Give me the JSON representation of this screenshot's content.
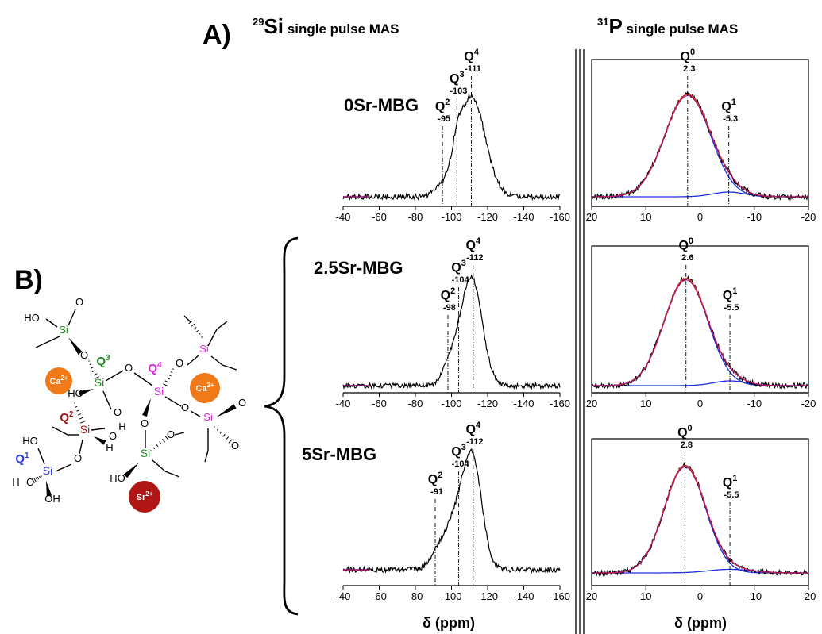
{
  "panels": {
    "a_label": "A)",
    "b_label": "B)",
    "si_header": {
      "isotope_mass": "29",
      "element": "Si",
      "text": " single pulse MAS"
    },
    "p_header": {
      "isotope_mass": "31",
      "element": "P",
      "text": " single pulse MAS"
    },
    "xlabel": "δ (ppm)"
  },
  "colors": {
    "experimental": "#000000",
    "fit_total": "#e0311f",
    "fit_envelope": "#b0127f",
    "components": "#1f2fe0"
  },
  "chart_data": [
    {
      "type": "line",
      "nucleus": "Si",
      "sample": "0Sr-MBG",
      "xlim": [
        -40,
        -160
      ],
      "xticks": [
        "-40",
        "-60",
        "-80",
        "-100",
        "-120",
        "-140",
        "-160"
      ],
      "peaks": [
        {
          "q": "Q",
          "sup": "2",
          "shift": -95,
          "shift_label": "-95",
          "amp": 0.05,
          "width": 5
        },
        {
          "q": "Q",
          "sup": "3",
          "shift": -103,
          "shift_label": "-103",
          "amp": 0.13,
          "width": 2.2
        },
        {
          "q": "Q",
          "sup": "4",
          "shift": -111,
          "shift_label": "-111",
          "amp": 0.85,
          "width": 7.5
        }
      ]
    },
    {
      "type": "line",
      "nucleus": "Si",
      "sample": "2.5Sr-MBG",
      "xlim": [
        -40,
        -160
      ],
      "xticks": [
        "-40",
        "-60",
        "-80",
        "-100",
        "-120",
        "-140",
        "-160"
      ],
      "peaks": [
        {
          "q": "Q",
          "sup": "2",
          "shift": -98,
          "shift_label": "-98",
          "amp": 0.04,
          "width": 3
        },
        {
          "q": "Q",
          "sup": "3",
          "shift": -104,
          "shift_label": "-104",
          "amp": 0.28,
          "width": 6
        },
        {
          "q": "Q",
          "sup": "4",
          "shift": -112,
          "shift_label": "-112",
          "amp": 0.78,
          "width": 5.5
        }
      ]
    },
    {
      "type": "line",
      "nucleus": "Si",
      "sample": "5Sr-MBG",
      "xlim": [
        -40,
        -160
      ],
      "xticks": [
        "-40",
        "-60",
        "-80",
        "-100",
        "-120",
        "-140",
        "-160"
      ],
      "peaks": [
        {
          "q": "Q",
          "sup": "2",
          "shift": -91,
          "shift_label": "-91",
          "amp": 0.05,
          "width": 3
        },
        {
          "q": "Q",
          "sup": "3",
          "shift": -104,
          "shift_label": "-104",
          "amp": 0.48,
          "width": 8
        },
        {
          "q": "Q",
          "sup": "4",
          "shift": -112,
          "shift_label": "-112",
          "amp": 0.68,
          "width": 5
        }
      ]
    },
    {
      "type": "line",
      "nucleus": "P",
      "sample": "0Sr-MBG",
      "xlim": [
        20,
        -20
      ],
      "xticks": [
        "20",
        "10",
        "0",
        "-10",
        "-20"
      ],
      "peaks": [
        {
          "q": "Q",
          "sup": "0",
          "shift": 2.3,
          "shift_label": "2.3",
          "amp": 0.86,
          "width": 4.2
        },
        {
          "q": "Q",
          "sup": "1",
          "shift": -5.3,
          "shift_label": "-5.3",
          "amp": 0.04,
          "width": 3
        }
      ]
    },
    {
      "type": "line",
      "nucleus": "P",
      "sample": "2.5Sr-MBG",
      "xlim": [
        20,
        -20
      ],
      "xticks": [
        "20",
        "10",
        "0",
        "-10",
        "-20"
      ],
      "peaks": [
        {
          "q": "Q",
          "sup": "0",
          "shift": 2.6,
          "shift_label": "2.6",
          "amp": 0.9,
          "width": 4
        },
        {
          "q": "Q",
          "sup": "1",
          "shift": -5.5,
          "shift_label": "-5.5",
          "amp": 0.04,
          "width": 3
        }
      ]
    },
    {
      "type": "line",
      "nucleus": "P",
      "sample": "5Sr-MBG",
      "xlim": [
        20,
        -20
      ],
      "xticks": [
        "20",
        "10",
        "0",
        "-10",
        "-20"
      ],
      "peaks": [
        {
          "q": "Q",
          "sup": "0",
          "shift": 2.8,
          "shift_label": "2.8",
          "amp": 0.9,
          "width": 3.8
        },
        {
          "q": "Q",
          "sup": "1",
          "shift": -5.5,
          "shift_label": "-5.5",
          "amp": 0.03,
          "width": 4
        }
      ]
    }
  ],
  "structure": {
    "atoms": {
      "si_q1": "Si",
      "si_q2": "Si",
      "si_q3": "Si",
      "si_q4": "Si",
      "si_upper_right": "Si",
      "si_lower_right": "Si",
      "si_bottom": "Si",
      "si_upper_left": "Si",
      "o": "O",
      "ho": "HO",
      "oh": "OH",
      "h": "H"
    },
    "labels": {
      "q1": {
        "q": "Q",
        "sup": "1"
      },
      "q2": {
        "q": "Q",
        "sup": "2"
      },
      "q3": {
        "q": "Q",
        "sup": "3"
      },
      "q4": {
        "q": "Q",
        "sup": "4"
      }
    },
    "ions": {
      "ca": {
        "el": "Ca",
        "charge": "2+"
      },
      "sr": {
        "el": "Sr",
        "charge": "2+"
      }
    },
    "ion_colors": {
      "ca": "#f07a1a",
      "sr": "#b01616"
    },
    "q_colors": {
      "q1": "#2a3ee0",
      "q2": "#a01818",
      "q3": "#1f8a1f",
      "q4": "#e020e0"
    }
  }
}
